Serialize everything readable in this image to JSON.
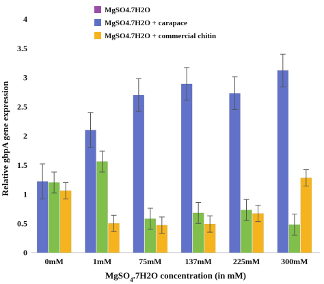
{
  "chart_data": {
    "type": "bar",
    "categories": [
      "0mM",
      "1mM",
      "75mM",
      "137mM",
      "225mM",
      "300mM"
    ],
    "series": [
      {
        "name": "MgSO4.7H2O",
        "color": "#6272c8",
        "values": [
          1.22,
          2.1,
          null,
          null,
          null,
          null
        ],
        "errors": [
          0.3,
          0.3,
          null,
          null,
          null,
          null
        ]
      },
      {
        "name": "MgSO4.7H2O + carapace",
        "color": "#5b70c4",
        "values": [
          null,
          null,
          2.7,
          2.89,
          2.73,
          3.12
        ],
        "errors": [
          null,
          null,
          0.28,
          0.28,
          0.28,
          0.28
        ]
      },
      {
        "name": "MgSO4.7H2O + commercial chitin",
        "color": "#f0b020",
        "values": [
          null,
          null,
          null,
          null,
          null,
          null
        ],
        "errors": [
          null,
          null,
          null,
          null,
          null,
          null
        ]
      }
    ],
    "bars": [
      [
        {
          "value": 1.22,
          "error": 0.3,
          "color": "#6272c8"
        },
        {
          "value": 1.2,
          "error": 0.18,
          "color": "#7fbf4a"
        },
        {
          "value": 1.06,
          "error": 0.14,
          "color": "#f5b41e"
        }
      ],
      [
        {
          "value": 2.1,
          "error": 0.3,
          "color": "#6272c8"
        },
        {
          "value": 1.56,
          "error": 0.18,
          "color": "#7fbf4a"
        },
        {
          "value": 0.5,
          "error": 0.14,
          "color": "#f5b41e"
        }
      ],
      [
        {
          "value": 2.7,
          "error": 0.28,
          "color": "#6272c8"
        },
        {
          "value": 0.58,
          "error": 0.18,
          "color": "#7fbf4a"
        },
        {
          "value": 0.47,
          "error": 0.14,
          "color": "#f5b41e"
        }
      ],
      [
        {
          "value": 2.89,
          "error": 0.28,
          "color": "#6272c8"
        },
        {
          "value": 0.68,
          "error": 0.18,
          "color": "#7fbf4a"
        },
        {
          "value": 0.49,
          "error": 0.14,
          "color": "#f5b41e"
        }
      ],
      [
        {
          "value": 2.73,
          "error": 0.28,
          "color": "#6272c8"
        },
        {
          "value": 0.73,
          "error": 0.18,
          "color": "#7fbf4a"
        },
        {
          "value": 0.67,
          "error": 0.14,
          "color": "#f5b41e"
        }
      ],
      [
        {
          "value": 3.12,
          "error": 0.28,
          "color": "#6272c8"
        },
        {
          "value": 0.48,
          "error": 0.18,
          "color": "#7fbf4a"
        },
        {
          "value": 1.28,
          "error": 0.14,
          "color": "#f5b41e"
        }
      ]
    ],
    "legend": [
      {
        "label": "MgSO4.7H2O",
        "color": "#9a4ea8"
      },
      {
        "label": "MgSO4.7H2O + carapace",
        "color": "#5b70c4"
      },
      {
        "label": "MgSO4.7H2O + commercial chitin",
        "color": "#f5b41e"
      }
    ],
    "legend_position": "top",
    "ylim": [
      0,
      4
    ],
    "yticks": [
      0,
      0.5,
      1,
      1.5,
      2,
      2.5,
      3,
      3.5,
      4
    ],
    "ylabel": "Relative gbpA  gene expression",
    "xlabel": "MgSO4.7H2O concentration  (in mM)",
    "grid": false
  }
}
